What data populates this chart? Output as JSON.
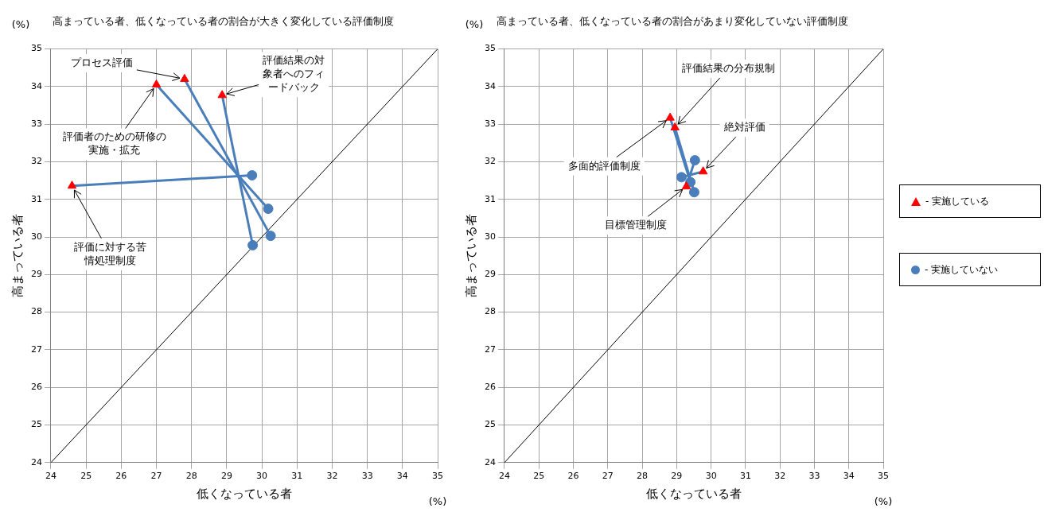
{
  "chart_data": [
    {
      "type": "scatter",
      "title": "高まっている者、低くなっている者の割合が大きく変化している評価制度",
      "xlabel": "低くなっている者",
      "ylabel": "高まっている者",
      "xlim": [
        24,
        35
      ],
      "ylim": [
        24,
        35
      ],
      "xticks": [
        24,
        25,
        26,
        27,
        28,
        29,
        30,
        31,
        32,
        33,
        34,
        35
      ],
      "yticks": [
        24,
        25,
        26,
        27,
        28,
        29,
        30,
        31,
        32,
        33,
        34,
        35
      ],
      "grid": true,
      "series": [
        {
          "type": "line",
          "color": "#000000",
          "marker": "none",
          "x": [
            24,
            35
          ],
          "values": [
            24,
            35
          ]
        },
        {
          "type": "line",
          "color": "#4a7ebb",
          "marker": "none",
          "x": [
            27.8,
            30.25
          ],
          "values": [
            34.2,
            30.03
          ]
        },
        {
          "type": "line",
          "color": "#4a7ebb",
          "marker": "none",
          "x": [
            27.0,
            30.18
          ],
          "values": [
            34.05,
            30.75
          ]
        },
        {
          "type": "line",
          "color": "#4a7ebb",
          "marker": "none",
          "x": [
            28.87,
            29.74
          ],
          "values": [
            33.77,
            29.78
          ]
        },
        {
          "type": "line",
          "color": "#4a7ebb",
          "marker": "none",
          "x": [
            24.6,
            29.72
          ],
          "values": [
            31.36,
            31.64
          ]
        },
        {
          "type": "scatter",
          "color": "#4a7ebb",
          "marker": "circle",
          "x": [
            30.25,
            30.18,
            29.74,
            29.72
          ],
          "values": [
            30.03,
            30.75,
            29.78,
            31.64
          ]
        },
        {
          "type": "scatter",
          "color": "#ff0000",
          "marker": "triangle",
          "x": [
            27.8,
            27.0,
            28.87,
            24.6
          ],
          "values": [
            34.2,
            34.05,
            33.77,
            31.36
          ]
        }
      ],
      "annotations": [
        "(%)",
        "(%)",
        {
          "text": "プロセス評価",
          "x": 27.8,
          "y": 34.2
        },
        {
          "text": "評価者のための研修の実施・拡充",
          "x": 27.0,
          "y": 34.05
        },
        {
          "text": "評価結果の対象者へのフィードバック",
          "x": 28.87,
          "y": 33.77
        },
        {
          "text": "評価に対する苦情処理制度",
          "x": 24.6,
          "y": 31.36
        }
      ]
    },
    {
      "type": "scatter",
      "title": "高まっている者、低くなっている者の割合があまり変化していない評価制度",
      "xlabel": "低くなっている者",
      "ylabel": "高まっている者",
      "xlim": [
        24,
        35
      ],
      "ylim": [
        24,
        35
      ],
      "xticks": [
        24,
        25,
        26,
        27,
        28,
        29,
        30,
        31,
        32,
        33,
        34,
        35
      ],
      "yticks": [
        24,
        25,
        26,
        27,
        28,
        29,
        30,
        31,
        32,
        33,
        34,
        35
      ],
      "grid": true,
      "legend": "right",
      "series": [
        {
          "type": "line",
          "color": "#000000",
          "marker": "none",
          "x": [
            24,
            35
          ],
          "values": [
            24,
            35
          ]
        },
        {
          "type": "line",
          "color": "#4a7ebb",
          "marker": "none",
          "x": [
            28.81,
            29.4
          ],
          "values": [
            33.17,
            31.46
          ]
        },
        {
          "type": "line",
          "color": "#4a7ebb",
          "marker": "none",
          "x": [
            28.95,
            29.51
          ],
          "values": [
            32.91,
            31.19
          ]
        },
        {
          "type": "line",
          "color": "#4a7ebb",
          "marker": "none",
          "x": [
            29.77,
            29.14
          ],
          "values": [
            31.74,
            31.59
          ]
        },
        {
          "type": "line",
          "color": "#4a7ebb",
          "marker": "none",
          "x": [
            29.28,
            29.53
          ],
          "values": [
            31.34,
            32.04
          ]
        },
        {
          "name": "- 実施していない",
          "type": "scatter",
          "color": "#4a7ebb",
          "marker": "circle",
          "x": [
            29.4,
            29.51,
            29.14,
            29.53
          ],
          "values": [
            31.46,
            31.19,
            31.59,
            32.04
          ]
        },
        {
          "name": "- 実施している",
          "type": "scatter",
          "color": "#ff0000",
          "marker": "triangle",
          "x": [
            28.81,
            28.95,
            29.77,
            29.28
          ],
          "values": [
            33.17,
            32.91,
            31.74,
            31.34
          ]
        }
      ],
      "annotations": [
        "(%)",
        "(%)",
        {
          "text": "多面的評価制度",
          "x": 28.81,
          "y": 33.17
        },
        {
          "text": "評価結果の分布規制",
          "x": 28.95,
          "y": 32.91
        },
        {
          "text": "絶対評価",
          "x": 29.77,
          "y": 31.74
        },
        {
          "text": "目標管理制度",
          "x": 29.28,
          "y": 31.34
        }
      ]
    }
  ]
}
